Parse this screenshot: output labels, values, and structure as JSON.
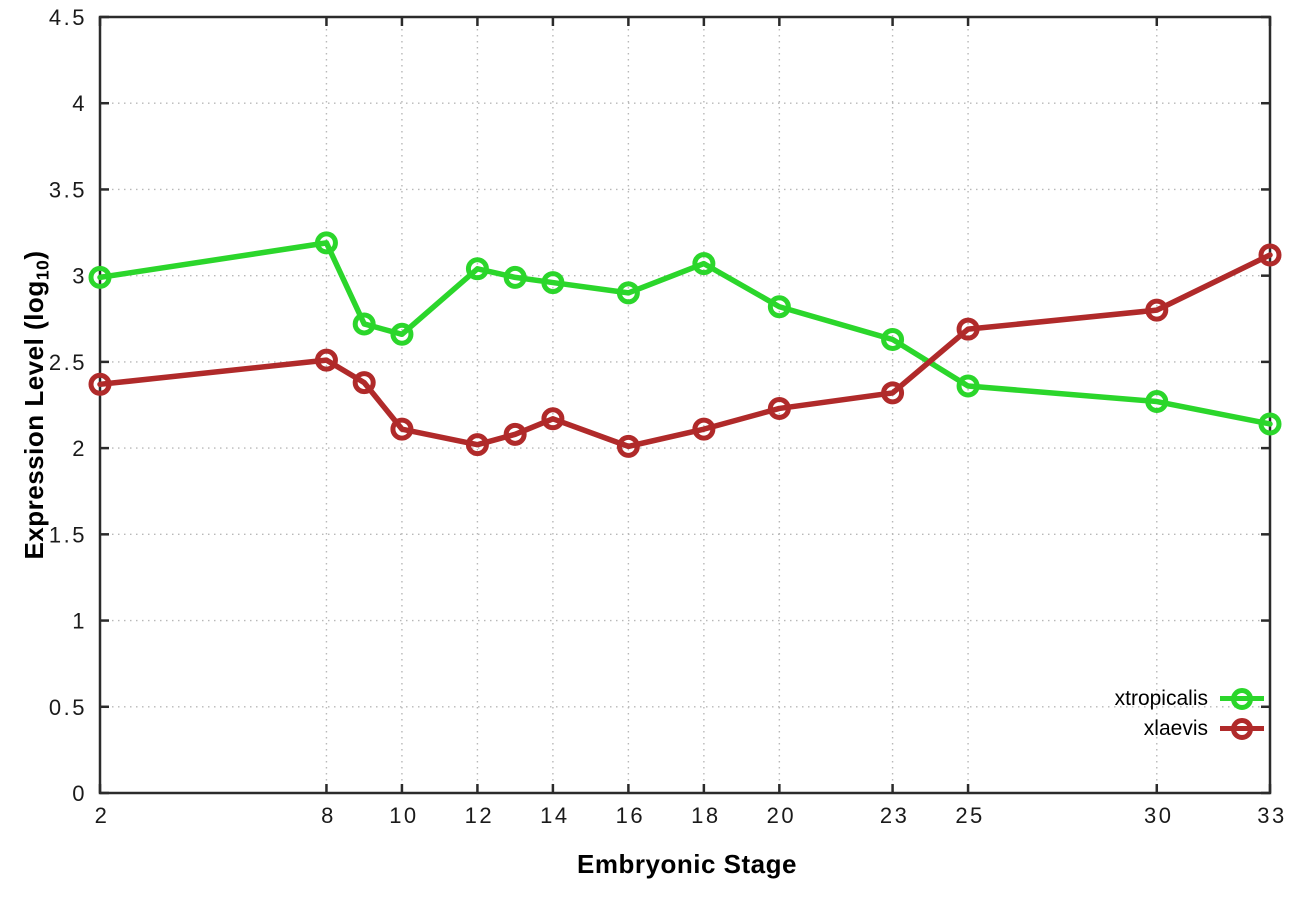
{
  "figure": {
    "background": "#ffffff",
    "x_axis_title": "Embryonic Stage",
    "ylabel_parts": {
      "prefix": "Expression Level (log",
      "sub": "10",
      "suffix": ")"
    }
  },
  "chart_data": {
    "type": "line",
    "title": "",
    "xlabel": "Embryonic Stage",
    "ylabel": "Expression Level (log10)",
    "x": [
      2,
      8,
      9,
      10,
      12,
      13,
      14,
      16,
      18,
      20,
      23,
      25,
      30,
      33
    ],
    "x_ticks": [
      2,
      8,
      10,
      12,
      14,
      16,
      18,
      20,
      23,
      25,
      30,
      33
    ],
    "y_ticks": [
      0,
      0.5,
      1,
      1.5,
      2,
      2.5,
      3,
      3.5,
      4,
      4.5
    ],
    "xlim": [
      2,
      33
    ],
    "ylim": [
      0,
      4.5
    ],
    "grid": true,
    "grid_style": "dotted",
    "legend_position": "bottom-right",
    "border_color": "#2b2b2b",
    "grid_color": "#b8b8b8",
    "tick_label_color": "#1a1a1a",
    "series": [
      {
        "name": "xtropicalis",
        "color": "#2bd62b",
        "values": [
          2.99,
          3.19,
          2.72,
          2.66,
          3.04,
          2.99,
          2.96,
          2.9,
          3.07,
          2.82,
          2.63,
          2.36,
          2.27,
          2.14
        ]
      },
      {
        "name": "xlaevis",
        "color": "#b02a2a",
        "values": [
          2.37,
          2.51,
          2.38,
          2.11,
          2.02,
          2.08,
          2.17,
          2.01,
          2.11,
          2.23,
          2.32,
          2.69,
          2.8,
          3.12
        ]
      }
    ]
  }
}
